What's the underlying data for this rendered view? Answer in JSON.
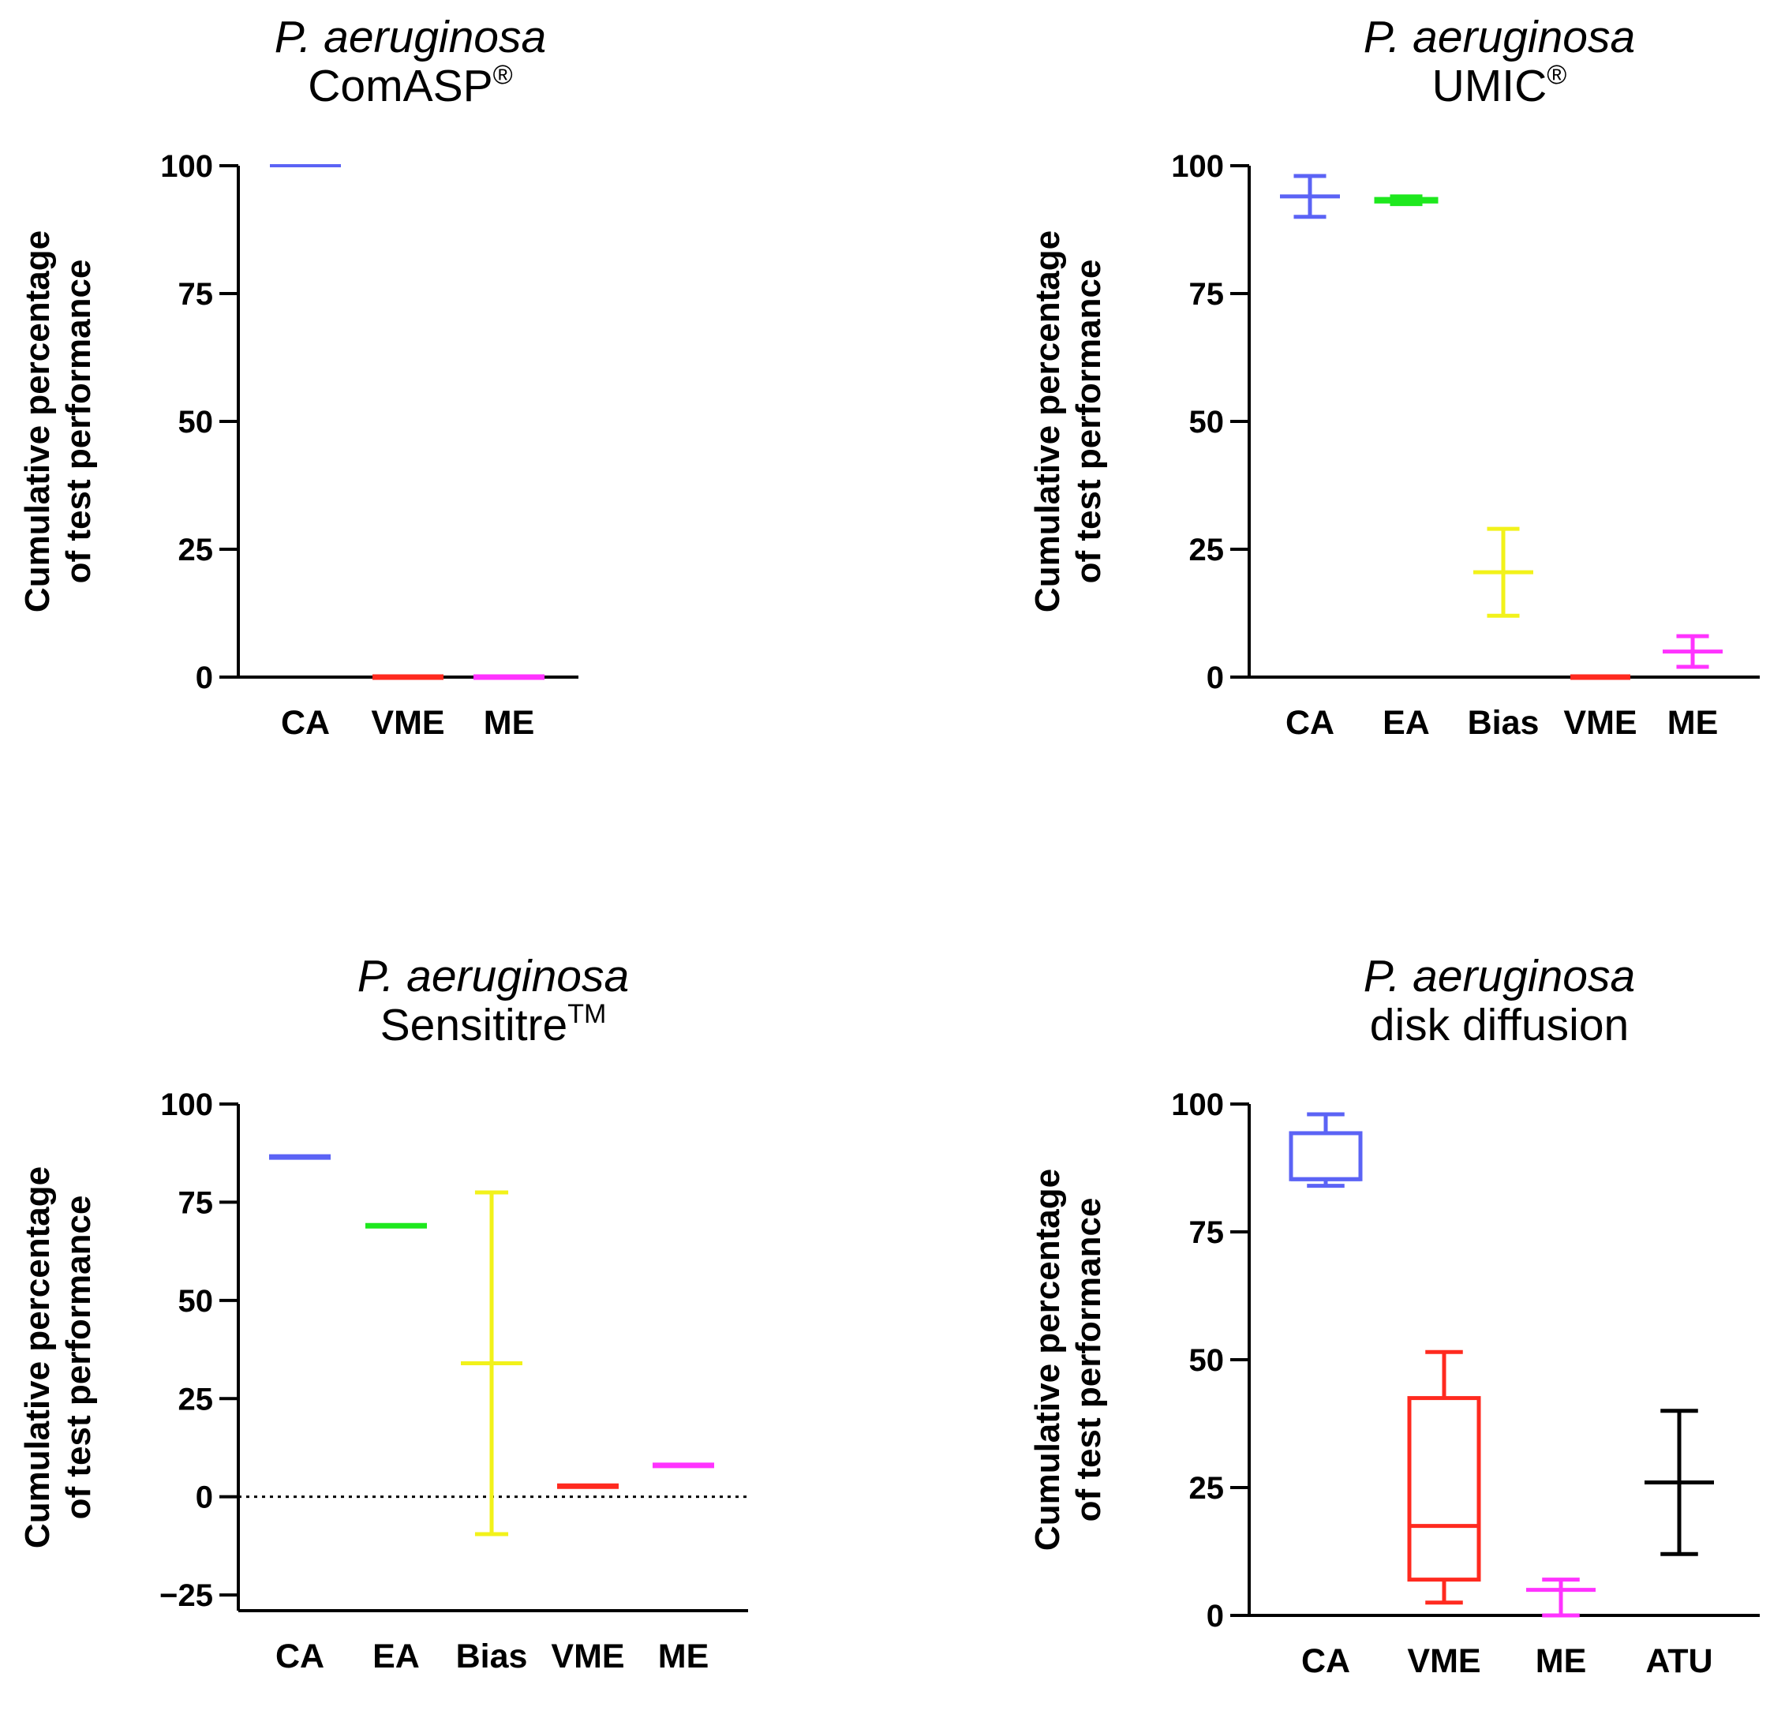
{
  "figure": {
    "ylabel_line1": "Cumulative percentage",
    "ylabel_line2": "of test performance"
  },
  "panels": [
    {
      "title_line1": "P. aeruginosa",
      "title_line2": "ComASP",
      "title_sup": "®"
    },
    {
      "title_line1": "P. aeruginosa",
      "title_line2": "UMIC",
      "title_sup": "®"
    },
    {
      "title_line1": "P. aeruginosa",
      "title_line2": "Sensititre",
      "title_sup": "TM"
    },
    {
      "title_line1": "P. aeruginosa",
      "title_line2": "disk diffusion",
      "title_sup": ""
    }
  ],
  "chart_data": [
    {
      "type": "box",
      "title": "P. aeruginosa ComASP®",
      "ylabel": "Cumulative percentage of test performance",
      "ylim": [
        0,
        100
      ],
      "yticks": [
        0,
        25,
        50,
        75,
        100
      ],
      "yticklabels": [
        "0",
        "25",
        "50",
        "75",
        "100"
      ],
      "zero_line": true,
      "categories": [
        "CA",
        "VME",
        "ME"
      ],
      "series": [
        {
          "category": "CA",
          "color": "#5b63f5",
          "min": 100,
          "q1": 100,
          "median": 100,
          "q3": 100,
          "max": 100
        },
        {
          "category": "VME",
          "color": "#ff2a1f",
          "min": 0,
          "q1": 0,
          "median": 0,
          "q3": 0,
          "max": 0
        },
        {
          "category": "ME",
          "color": "#ff33ff",
          "min": 0,
          "q1": 0,
          "median": 0,
          "q3": 0,
          "max": 0
        }
      ]
    },
    {
      "type": "box",
      "title": "P. aeruginosa UMIC®",
      "ylabel": "Cumulative percentage of test performance",
      "ylim": [
        0,
        100
      ],
      "yticks": [
        0,
        25,
        50,
        75,
        100
      ],
      "yticklabels": [
        "0",
        "25",
        "50",
        "75",
        "100"
      ],
      "zero_line": true,
      "categories": [
        "CA",
        "EA",
        "Bias",
        "VME",
        "ME"
      ],
      "series": [
        {
          "category": "CA",
          "color": "#5b63f5",
          "min": 90,
          "q1": 94,
          "median": 94,
          "q3": 94,
          "max": 98
        },
        {
          "category": "EA",
          "color": "#1ee81e",
          "min": 92.5,
          "q1": 93,
          "median": 93.3,
          "q3": 93.5,
          "max": 94
        },
        {
          "category": "Bias",
          "color": "#f2f21a",
          "min": 12,
          "q1": 20.5,
          "median": 20.5,
          "q3": 20.5,
          "max": 29
        },
        {
          "category": "VME",
          "color": "#ff2a1f",
          "min": 0,
          "q1": 0,
          "median": 0,
          "q3": 0,
          "max": 0
        },
        {
          "category": "ME",
          "color": "#ff33ff",
          "min": 2,
          "q1": 5,
          "median": 5,
          "q3": 5,
          "max": 8
        }
      ]
    },
    {
      "type": "box",
      "title": "P. aeruginosa Sensititre™",
      "ylabel": "Cumulative percentage of test performance",
      "ylim": [
        -29,
        100
      ],
      "yticks": [
        -25,
        0,
        25,
        50,
        75,
        100
      ],
      "yticklabels": [
        "−25",
        "0",
        "25",
        "50",
        "75",
        "100"
      ],
      "zero_line": true,
      "categories": [
        "CA",
        "EA",
        "Bias",
        "VME",
        "ME"
      ],
      "series": [
        {
          "category": "CA",
          "color": "#5b63f5",
          "min": 86.5,
          "q1": 86.5,
          "median": 86.5,
          "q3": 86.5,
          "max": 86.5
        },
        {
          "category": "EA",
          "color": "#1ee81e",
          "min": 69,
          "q1": 69,
          "median": 69,
          "q3": 69,
          "max": 69
        },
        {
          "category": "Bias",
          "color": "#f2f21a",
          "min": -9.5,
          "q1": 34,
          "median": 34,
          "q3": 34,
          "max": 77.5
        },
        {
          "category": "VME",
          "color": "#ff2a1f",
          "min": 2.7,
          "q1": 2.7,
          "median": 2.7,
          "q3": 2.7,
          "max": 2.7
        },
        {
          "category": "ME",
          "color": "#ff33ff",
          "min": 8,
          "q1": 8,
          "median": 8,
          "q3": 8,
          "max": 8
        }
      ]
    },
    {
      "type": "box",
      "title": "P. aeruginosa disk diffusion",
      "ylabel": "Cumulative percentage of test performance",
      "ylim": [
        0,
        100
      ],
      "yticks": [
        0,
        25,
        50,
        75,
        100
      ],
      "yticklabels": [
        "0",
        "25",
        "50",
        "75",
        "100"
      ],
      "zero_line": true,
      "categories": [
        "CA",
        "VME",
        "ME",
        "ATU"
      ],
      "series": [
        {
          "category": "CA",
          "color": "#5b63f5",
          "min": 84,
          "q1": 85.3,
          "median": 85.3,
          "q3": 94.3,
          "max": 98
        },
        {
          "category": "VME",
          "color": "#ff2a1f",
          "min": 2.5,
          "q1": 7,
          "median": 17.5,
          "q3": 42.5,
          "max": 51.5
        },
        {
          "category": "ME",
          "color": "#ff33ff",
          "min": 0,
          "q1": 5,
          "median": 5,
          "q3": 5,
          "max": 7
        },
        {
          "category": "ATU",
          "color": "#000000",
          "min": 12,
          "q1": 26,
          "median": 26,
          "q3": 26,
          "max": 40
        }
      ]
    }
  ]
}
